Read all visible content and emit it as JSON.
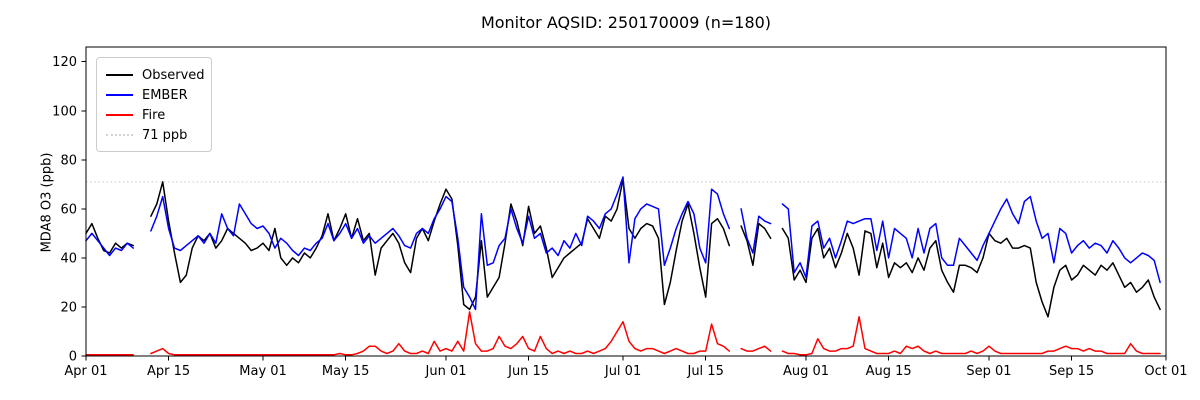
{
  "title": "Monitor AQSID: 250170009 (n=180)",
  "chart_data": {
    "type": "line",
    "title": "Monitor AQSID: 250170009 (n=180)",
    "xlabel": "",
    "ylabel": "MDA8 O3 (ppb)",
    "ylim": [
      0,
      126
    ],
    "yticks": [
      0,
      20,
      40,
      60,
      80,
      100,
      120
    ],
    "grid": false,
    "x_total_days": 183,
    "x_start": "Apr 01",
    "x_end": "Oct 01",
    "xticks": [
      {
        "day": 0,
        "label": "Apr 01"
      },
      {
        "day": 14,
        "label": "Apr 15"
      },
      {
        "day": 30,
        "label": "May 01"
      },
      {
        "day": 44,
        "label": "May 15"
      },
      {
        "day": 61,
        "label": "Jun 01"
      },
      {
        "day": 75,
        "label": "Jun 15"
      },
      {
        "day": 91,
        "label": "Jul 01"
      },
      {
        "day": 105,
        "label": "Jul 15"
      },
      {
        "day": 122,
        "label": "Aug 01"
      },
      {
        "day": 136,
        "label": "Aug 15"
      },
      {
        "day": 153,
        "label": "Sep 01"
      },
      {
        "day": 167,
        "label": "Sep 15"
      },
      {
        "day": 183,
        "label": "Oct 01"
      }
    ],
    "threshold": {
      "value": 71,
      "label": "71 ppb",
      "color": "#d3d3d3",
      "style": "dotted"
    },
    "legend": {
      "position": "upper-left",
      "entries": [
        {
          "label": "Observed",
          "color": "#000000",
          "style": "solid"
        },
        {
          "label": "EMBER",
          "color": "#0000ff",
          "style": "solid"
        },
        {
          "label": "Fire",
          "color": "#ff0000",
          "style": "solid"
        },
        {
          "label": "71 ppb",
          "color": "#d3d3d3",
          "style": "dotted"
        }
      ]
    },
    "series": [
      {
        "name": "Observed",
        "color": "#000000",
        "values": [
          50,
          54,
          48,
          43,
          42,
          46,
          44,
          46,
          45,
          null,
          null,
          57,
          62,
          71,
          55,
          42,
          30,
          33,
          44,
          49,
          47,
          50,
          44,
          47,
          52,
          50,
          48,
          46,
          43,
          44,
          46,
          43,
          52,
          40,
          37,
          40,
          38,
          42,
          40,
          44,
          49,
          58,
          47,
          52,
          58,
          48,
          56,
          47,
          50,
          33,
          44,
          47,
          50,
          46,
          38,
          34,
          48,
          52,
          47,
          55,
          62,
          68,
          64,
          45,
          21,
          19,
          24,
          47,
          24,
          28,
          32,
          46,
          62,
          55,
          45,
          61,
          50,
          53,
          44,
          32,
          36,
          40,
          42,
          44,
          46,
          56,
          52,
          48,
          57,
          55,
          60,
          72,
          52,
          48,
          52,
          54,
          53,
          48,
          21,
          30,
          43,
          55,
          62,
          50,
          36,
          24,
          54,
          56,
          52,
          45,
          null,
          53,
          47,
          37,
          54,
          52,
          48,
          null,
          52,
          48,
          31,
          35,
          30,
          48,
          52,
          40,
          44,
          36,
          42,
          50,
          44,
          33,
          51,
          50,
          36,
          46,
          32,
          38,
          36,
          38,
          34,
          40,
          35,
          44,
          47,
          35,
          30,
          26,
          37,
          37,
          36,
          34,
          40,
          50,
          47,
          46,
          48,
          44,
          44,
          45,
          44,
          30,
          22,
          16,
          28,
          35,
          37,
          31,
          33,
          37,
          35,
          33,
          37,
          35,
          38,
          33,
          28,
          30,
          26,
          28,
          31,
          24,
          19
        ]
      },
      {
        "name": "EMBER",
        "color": "#0000ff",
        "values": [
          47,
          50,
          47,
          44,
          41,
          44,
          43,
          46,
          44,
          null,
          null,
          51,
          57,
          65,
          52,
          44,
          43,
          45,
          47,
          49,
          46,
          50,
          46,
          58,
          52,
          49,
          62,
          58,
          54,
          52,
          53,
          50,
          44,
          48,
          46,
          43,
          41,
          44,
          43,
          46,
          48,
          54,
          47,
          50,
          54,
          48,
          52,
          46,
          49,
          46,
          48,
          50,
          52,
          49,
          45,
          44,
          50,
          52,
          50,
          56,
          60,
          65,
          63,
          48,
          28,
          24,
          19,
          58,
          37,
          38,
          45,
          48,
          60,
          52,
          46,
          57,
          48,
          50,
          42,
          44,
          41,
          47,
          44,
          50,
          45,
          57,
          55,
          52,
          58,
          60,
          66,
          73,
          38,
          56,
          60,
          62,
          61,
          60,
          37,
          44,
          52,
          58,
          63,
          58,
          44,
          38,
          68,
          66,
          58,
          52,
          null,
          60,
          48,
          42,
          57,
          55,
          54,
          null,
          62,
          60,
          34,
          38,
          32,
          53,
          55,
          44,
          48,
          40,
          47,
          55,
          54,
          55,
          56,
          56,
          43,
          55,
          40,
          52,
          50,
          48,
          40,
          52,
          42,
          52,
          54,
          40,
          37,
          37,
          48,
          45,
          42,
          39,
          45,
          50,
          55,
          60,
          64,
          58,
          54,
          63,
          65,
          55,
          48,
          50,
          38,
          52,
          50,
          42,
          45,
          47,
          44,
          46,
          45,
          42,
          47,
          44,
          40,
          38,
          40,
          42,
          41,
          39,
          30
        ]
      },
      {
        "name": "Fire",
        "color": "#ff0000",
        "values": [
          0.5,
          0.5,
          0.5,
          0.5,
          0.5,
          0.5,
          0.5,
          0.5,
          0.5,
          null,
          null,
          1,
          2,
          3,
          1,
          0.5,
          0.5,
          0.5,
          0.5,
          0.5,
          0.5,
          0.5,
          0.5,
          0.5,
          0.5,
          0.5,
          0.5,
          0.5,
          0.5,
          0.5,
          0.5,
          0.5,
          0.5,
          0.5,
          0.5,
          0.5,
          0.5,
          0.5,
          0.5,
          0.5,
          0.5,
          0.5,
          0.5,
          1,
          0.5,
          0.5,
          1,
          2,
          4,
          4,
          2,
          1,
          2,
          5,
          2,
          1,
          1,
          2,
          1,
          6,
          2,
          3,
          2,
          6,
          2,
          18,
          5,
          2,
          2,
          3,
          8,
          4,
          3,
          5,
          8,
          3,
          2,
          8,
          3,
          1,
          2,
          1,
          2,
          1,
          1,
          2,
          1,
          2,
          3,
          6,
          10,
          14,
          6,
          3,
          2,
          3,
          3,
          2,
          1,
          2,
          3,
          2,
          1,
          1,
          2,
          2,
          13,
          5,
          4,
          2,
          null,
          3,
          2,
          2,
          3,
          4,
          2,
          null,
          2,
          1,
          1,
          0.5,
          0.5,
          1,
          7,
          3,
          2,
          2,
          3,
          3,
          4,
          16,
          3,
          2,
          1,
          1,
          1,
          2,
          1,
          4,
          3,
          4,
          2,
          1,
          2,
          1,
          1,
          1,
          1,
          1,
          2,
          1,
          2,
          4,
          2,
          1,
          1,
          1,
          1,
          1,
          1,
          1,
          1,
          2,
          2,
          3,
          4,
          3,
          3,
          2,
          3,
          2,
          2,
          1,
          1,
          1,
          1,
          5,
          2,
          1,
          1,
          1,
          1
        ]
      }
    ]
  }
}
